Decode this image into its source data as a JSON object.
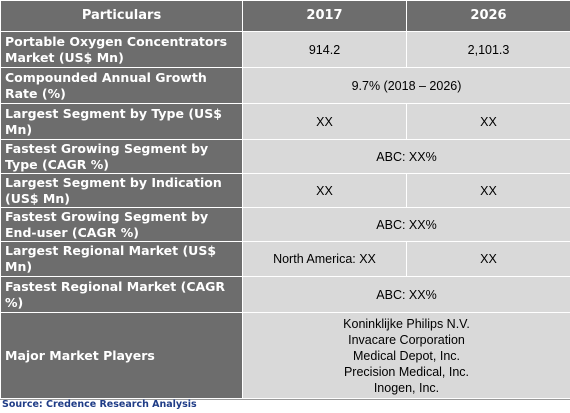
{
  "header": {
    "particulars": "Particulars",
    "year1": "2017",
    "year2": "2026"
  },
  "rows": [
    {
      "label": "Portable Oxygen Concentrators Market (US$ Mn)",
      "v2017": "914.2",
      "v2026": "2,101.3"
    },
    {
      "label": "Compounded Annual Growth Rate (%)",
      "merged": "9.7% (2018 – 2026)"
    },
    {
      "label": "Largest Segment by Type (US$ Mn)",
      "v2017": "XX",
      "v2026": "XX"
    },
    {
      "label": "Fastest Growing Segment by Type (CAGR %)",
      "merged": "ABC: XX%"
    },
    {
      "label": "Largest Segment by Indication (US$ Mn)",
      "v2017": "XX",
      "v2026": "XX"
    },
    {
      "label": "Fastest Growing Segment by End-user (CAGR %)",
      "merged": "ABC: XX%"
    },
    {
      "label": "Largest Regional Market (US$ Mn)",
      "v2017": "North America: XX",
      "v2026": "XX"
    },
    {
      "label": "Fastest Regional Market (CAGR %)",
      "merged": "ABC: XX%"
    }
  ],
  "players": {
    "label": "Major Market Players",
    "list": [
      "Koninklijke Philips N.V.",
      "Invacare Corporation",
      "Medical Depot, Inc.",
      "Precision Medical, Inc.",
      "Inogen, Inc."
    ]
  },
  "source": "Source: Credence Research Analysis",
  "colors": {
    "header_bg": "#6d6d6d",
    "cell_bg": "#d9d9d9",
    "source_text": "#1f3c87"
  }
}
